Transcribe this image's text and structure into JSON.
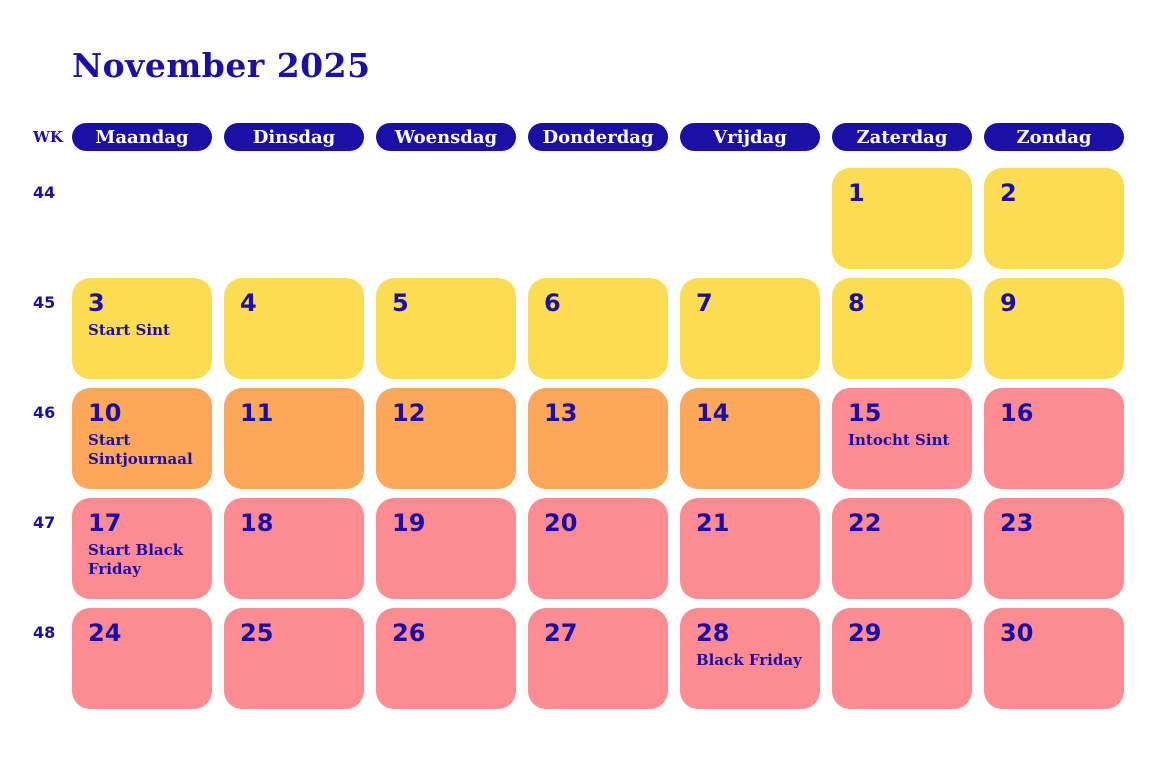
{
  "title": "November 2025",
  "colors": {
    "blue": "#1B10A5",
    "yellow": "#FCDC52",
    "orange": "#FCA75A",
    "pink": "#FD8C92",
    "header_text": "#FFFFFF"
  },
  "header": {
    "week_label": "WK",
    "days": [
      "Maandag",
      "Dinsdag",
      "Woensdag",
      "Donderdag",
      "Vrijdag",
      "Zaterdag",
      "Zondag"
    ]
  },
  "weeks": [
    {
      "number": "44",
      "days": [
        {
          "empty": true
        },
        {
          "empty": true
        },
        {
          "empty": true
        },
        {
          "empty": true
        },
        {
          "empty": true
        },
        {
          "date": "1",
          "color": "yellow"
        },
        {
          "date": "2",
          "color": "yellow"
        }
      ]
    },
    {
      "number": "45",
      "days": [
        {
          "date": "3",
          "color": "yellow",
          "event": "Start Sint"
        },
        {
          "date": "4",
          "color": "yellow"
        },
        {
          "date": "5",
          "color": "yellow"
        },
        {
          "date": "6",
          "color": "yellow"
        },
        {
          "date": "7",
          "color": "yellow"
        },
        {
          "date": "8",
          "color": "yellow"
        },
        {
          "date": "9",
          "color": "yellow"
        }
      ]
    },
    {
      "number": "46",
      "days": [
        {
          "date": "10",
          "color": "orange",
          "event": "Start Sintjournaal"
        },
        {
          "date": "11",
          "color": "orange"
        },
        {
          "date": "12",
          "color": "orange"
        },
        {
          "date": "13",
          "color": "orange"
        },
        {
          "date": "14",
          "color": "orange"
        },
        {
          "date": "15",
          "color": "pink",
          "event": "Intocht Sint"
        },
        {
          "date": "16",
          "color": "pink"
        }
      ]
    },
    {
      "number": "47",
      "days": [
        {
          "date": "17",
          "color": "pink",
          "event": "Start Black Friday"
        },
        {
          "date": "18",
          "color": "pink"
        },
        {
          "date": "19",
          "color": "pink"
        },
        {
          "date": "20",
          "color": "pink"
        },
        {
          "date": "21",
          "color": "pink"
        },
        {
          "date": "22",
          "color": "pink"
        },
        {
          "date": "23",
          "color": "pink"
        }
      ]
    },
    {
      "number": "48",
      "days": [
        {
          "date": "24",
          "color": "pink"
        },
        {
          "date": "25",
          "color": "pink"
        },
        {
          "date": "26",
          "color": "pink"
        },
        {
          "date": "27",
          "color": "pink"
        },
        {
          "date": "28",
          "color": "pink",
          "event": "Black Friday"
        },
        {
          "date": "29",
          "color": "pink"
        },
        {
          "date": "30",
          "color": "pink"
        }
      ]
    }
  ]
}
